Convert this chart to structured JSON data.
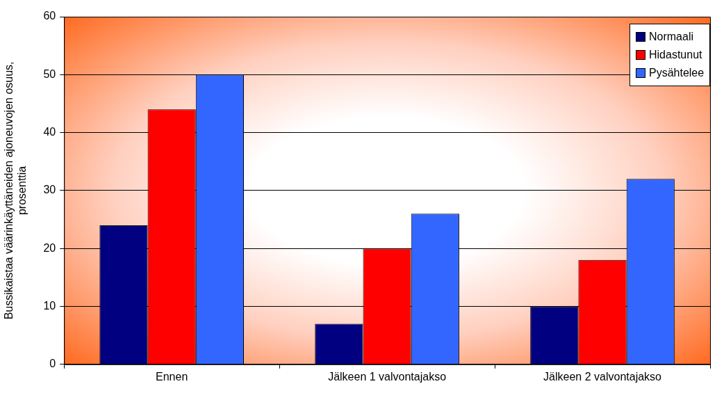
{
  "chart_data": {
    "type": "bar",
    "ylabel": "Bussikaistaa väärinkäyttäneiden ajoneuvojen osuus, prosenttia",
    "categories": [
      "Ennen",
      "Jälkeen 1 valvontajakso",
      "Jälkeen 2 valvontajakso"
    ],
    "series": [
      {
        "name": "Normaali",
        "color": "#000080",
        "values": [
          24,
          7,
          10
        ]
      },
      {
        "name": "Hidastunut",
        "color": "#ff0000",
        "values": [
          44,
          20,
          18
        ]
      },
      {
        "name": "Pysähtelee",
        "color": "#3366ff",
        "values": [
          50,
          26,
          32
        ]
      }
    ],
    "ylim": [
      0,
      60
    ],
    "yticks": [
      0,
      10,
      20,
      30,
      40,
      50,
      60
    ],
    "grid": "y",
    "legend": "top right"
  }
}
